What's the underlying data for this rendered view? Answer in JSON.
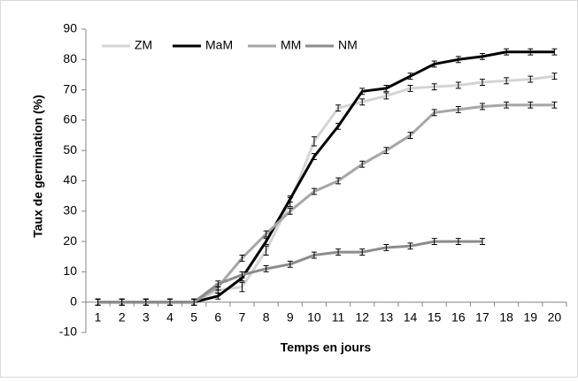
{
  "chart_data": {
    "type": "line",
    "xlabel": "Temps en jours",
    "ylabel": "Taux de germination (%)",
    "categories": [
      "1",
      "2",
      "3",
      "4",
      "5",
      "6",
      "7",
      "8",
      "9",
      "10",
      "11",
      "12",
      "13",
      "14",
      "15",
      "16",
      "17",
      "18",
      "19",
      "20"
    ],
    "ylim": [
      -10,
      90
    ],
    "yticks": [
      -10,
      0,
      10,
      20,
      30,
      40,
      50,
      60,
      70,
      80,
      90
    ],
    "legend": "top-left",
    "grid": false,
    "series": [
      {
        "name": "ZM",
        "color": "#d4d4d4",
        "values": [
          0,
          0,
          0,
          0,
          0,
          4,
          5,
          17,
          33,
          53,
          64,
          66,
          68,
          70.5,
          71,
          71.5,
          72.5,
          73,
          73.5,
          74.5
        ],
        "errors": [
          1,
          1,
          1,
          1,
          1,
          1,
          1.5,
          1.5,
          1.5,
          1.5,
          1,
          1,
          1,
          1,
          1,
          1,
          1,
          1,
          1,
          1
        ]
      },
      {
        "name": "MaM",
        "color": "#000000",
        "values": [
          0,
          0,
          0,
          0,
          0,
          2,
          8,
          20,
          34,
          48,
          58,
          69.5,
          70.5,
          74.5,
          78.5,
          80,
          81,
          82.5,
          82.5,
          82.5
        ],
        "errors": [
          1,
          1,
          1,
          1,
          1,
          1,
          1,
          1,
          1,
          1,
          1,
          1,
          1,
          1,
          1,
          1,
          1,
          1,
          1,
          1
        ]
      },
      {
        "name": "MM",
        "color": "#a6a6a6",
        "values": [
          0,
          0,
          0,
          0,
          0,
          5,
          14.5,
          22.5,
          30,
          36.5,
          40,
          45.5,
          50,
          55,
          62.5,
          63.5,
          64.5,
          65,
          65,
          65
        ],
        "errors": [
          1,
          1,
          1,
          1,
          1,
          1,
          1,
          1,
          1,
          1,
          1,
          1,
          1,
          1,
          1,
          1,
          1,
          1,
          1,
          1
        ]
      },
      {
        "name": "NM",
        "color": "#8c8c8c",
        "values": [
          0,
          0,
          0,
          0,
          0,
          6,
          9,
          11,
          12.5,
          15.5,
          16.5,
          16.5,
          18,
          18.5,
          20,
          20,
          20,
          null,
          null,
          null
        ],
        "errors": [
          1,
          1,
          1,
          1,
          1,
          1,
          1,
          1,
          1,
          1,
          1,
          1,
          1,
          1,
          1,
          1,
          1,
          null,
          null,
          null
        ]
      }
    ]
  }
}
